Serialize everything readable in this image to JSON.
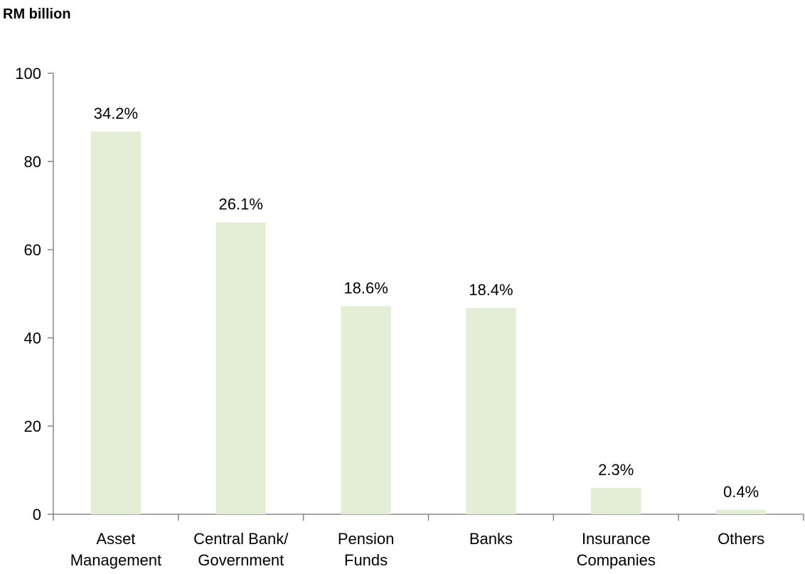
{
  "chart_data": {
    "type": "bar",
    "unit_label": "RM billion",
    "categories": [
      [
        "Asset",
        "Management"
      ],
      [
        "Central Bank/",
        "Government"
      ],
      [
        "Pension",
        "Funds"
      ],
      [
        "Banks"
      ],
      [
        "Insurance",
        "Companies"
      ],
      [
        "Others"
      ]
    ],
    "values": [
      86.8,
      66.2,
      47.2,
      46.8,
      6.0,
      1.0
    ],
    "data_labels": [
      "34.2%",
      "26.1%",
      "18.6%",
      "18.4%",
      "2.3%",
      "0.4%"
    ],
    "ylim": [
      0,
      100
    ],
    "yticks": [
      0,
      20,
      40,
      60,
      80,
      100
    ],
    "grid": false,
    "legend": "none",
    "bar_color": "#e4edd6"
  }
}
